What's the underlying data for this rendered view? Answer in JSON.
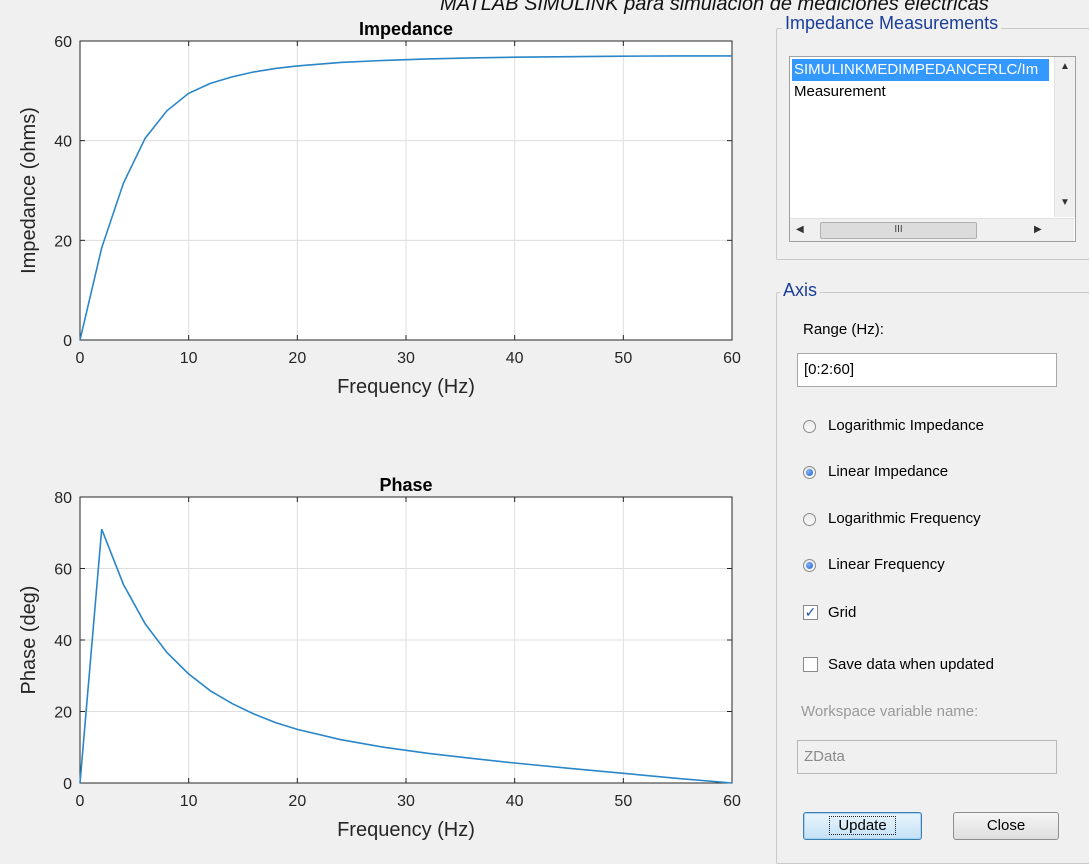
{
  "caption": "MATLAB SIMULINK para simulación de mediciones eléctricas",
  "impedance_plot": {
    "chart_data": {
      "type": "line",
      "title": "Impedance",
      "xlabel": "Frequency (Hz)",
      "ylabel": "Impedance (ohms)",
      "xlim": [
        0,
        60
      ],
      "ylim": [
        0,
        60
      ],
      "xticks": [
        "0",
        "10",
        "20",
        "30",
        "40",
        "50",
        "60"
      ],
      "yticks": [
        "0",
        "20",
        "40",
        "60"
      ],
      "grid": true,
      "color": "#2a86c8",
      "x": [
        0,
        2,
        4,
        6,
        8,
        10,
        12,
        14,
        16,
        18,
        20,
        24,
        28,
        32,
        36,
        40,
        45,
        50,
        55,
        60
      ],
      "y": [
        0,
        18.5,
        31.5,
        40.5,
        46,
        49.5,
        51.5,
        52.8,
        53.8,
        54.5,
        55,
        55.7,
        56.1,
        56.4,
        56.6,
        56.75,
        56.85,
        56.95,
        57,
        57
      ]
    }
  },
  "phase_plot": {
    "chart_data": {
      "type": "line",
      "title": "Phase",
      "xlabel": "Frequency (Hz)",
      "ylabel": "Phase (deg)",
      "xlim": [
        0,
        60
      ],
      "ylim": [
        0,
        80
      ],
      "xticks": [
        "0",
        "10",
        "20",
        "30",
        "40",
        "50",
        "60"
      ],
      "yticks": [
        "0",
        "20",
        "40",
        "60",
        "80"
      ],
      "grid": true,
      "color": "#2a86c8",
      "x": [
        0,
        2,
        4,
        6,
        8,
        10,
        12,
        14,
        16,
        18,
        20,
        24,
        28,
        32,
        36,
        40,
        45,
        50,
        55,
        60
      ],
      "y": [
        0,
        71,
        55.5,
        44.5,
        36.5,
        30.5,
        25.8,
        22.2,
        19.3,
        16.9,
        15,
        12.1,
        10,
        8.3,
        6.9,
        5.6,
        4.1,
        2.7,
        1.3,
        0
      ]
    }
  },
  "measurements": {
    "title": "Impedance Measurements",
    "items": [
      "SIMULINKMEDIMPEDANCERLC/Im",
      "Measurement"
    ],
    "selected_index": 0,
    "scroll_thumb_glyph": "III"
  },
  "axis": {
    "title": "Axis",
    "range_label": "Range (Hz):",
    "range_value": "[0:2:60]",
    "options": [
      {
        "label": "Logarithmic Impedance",
        "selected": false
      },
      {
        "label": "Linear Impedance",
        "selected": true
      },
      {
        "label": "Logarithmic Frequency",
        "selected": false
      },
      {
        "label": "Linear Frequency",
        "selected": true
      }
    ],
    "grid_label": "Grid",
    "grid_checked": true,
    "save_label": "Save data when updated",
    "save_checked": false,
    "workspace_label": "Workspace variable name:",
    "workspace_value": "ZData"
  },
  "buttons": {
    "update": "Update",
    "close": "Close"
  },
  "colors": {
    "line": "#2a86c8",
    "group_title": "#1a3d99",
    "selection": "#3399ff"
  }
}
